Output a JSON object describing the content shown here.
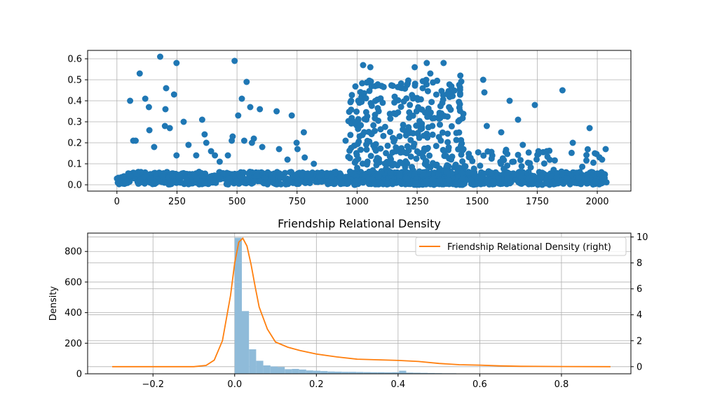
{
  "colors": {
    "scatter": "#1f77b4",
    "hist": "#8fbbd9",
    "kde": "#ff7f0e",
    "grid": "#b0b0b0"
  },
  "chart_data": [
    {
      "type": "scatter",
      "title": "",
      "xlabel": "",
      "ylabel": "",
      "xlim": [
        -122,
        2140
      ],
      "ylim": [
        -0.03,
        0.64
      ],
      "xticks": [
        0,
        250,
        500,
        750,
        1000,
        1250,
        1500,
        1750,
        2000
      ],
      "xtick_labels": [
        "0",
        "250",
        "500",
        "750",
        "1000",
        "1250",
        "1500",
        "1750",
        "2000"
      ],
      "yticks": [
        0.0,
        0.1,
        0.2,
        0.3,
        0.4,
        0.5,
        0.6
      ],
      "ytick_labels": [
        "0.0",
        "0.1",
        "0.2",
        "0.3",
        "0.4",
        "0.5",
        "0.6"
      ],
      "grid": true,
      "outliers": [
        [
          55,
          0.4
        ],
        [
          68,
          0.21
        ],
        [
          78,
          0.21
        ],
        [
          95,
          0.53
        ],
        [
          118,
          0.41
        ],
        [
          133,
          0.37
        ],
        [
          135,
          0.26
        ],
        [
          155,
          0.18
        ],
        [
          180,
          0.61
        ],
        [
          200,
          0.28
        ],
        [
          202,
          0.36
        ],
        [
          205,
          0.46
        ],
        [
          220,
          0.27
        ],
        [
          238,
          0.43
        ],
        [
          248,
          0.58
        ],
        [
          248,
          0.14
        ],
        [
          278,
          0.3
        ],
        [
          298,
          0.19
        ],
        [
          330,
          0.14
        ],
        [
          355,
          0.31
        ],
        [
          365,
          0.24
        ],
        [
          372,
          0.2
        ],
        [
          392,
          0.16
        ],
        [
          408,
          0.14
        ],
        [
          428,
          0.11
        ],
        [
          462,
          0.14
        ],
        [
          478,
          0.21
        ],
        [
          482,
          0.23
        ],
        [
          490,
          0.59
        ],
        [
          505,
          0.33
        ],
        [
          520,
          0.41
        ],
        [
          530,
          0.21
        ],
        [
          540,
          0.49
        ],
        [
          555,
          0.37
        ],
        [
          562,
          0.2
        ],
        [
          570,
          0.22
        ],
        [
          595,
          0.36
        ],
        [
          605,
          0.18
        ],
        [
          665,
          0.35
        ],
        [
          675,
          0.17
        ],
        [
          710,
          0.12
        ],
        [
          728,
          0.33
        ],
        [
          748,
          0.2
        ],
        [
          752,
          0.17
        ],
        [
          778,
          0.25
        ],
        [
          782,
          0.13
        ],
        [
          820,
          0.1
        ],
        [
          952,
          0.21
        ],
        [
          975,
          0.4
        ],
        [
          1025,
          0.57
        ],
        [
          1055,
          0.56
        ],
        [
          1240,
          0.56
        ],
        [
          1290,
          0.58
        ],
        [
          1305,
          0.53
        ],
        [
          1360,
          0.58
        ],
        [
          1430,
          0.52
        ],
        [
          1525,
          0.5
        ],
        [
          1530,
          0.44
        ],
        [
          1540,
          0.28
        ],
        [
          1600,
          0.25
        ],
        [
          1635,
          0.4
        ],
        [
          1670,
          0.31
        ],
        [
          1690,
          0.19
        ],
        [
          1740,
          0.38
        ],
        [
          1755,
          0.16
        ],
        [
          1790,
          0.16
        ],
        [
          1855,
          0.45
        ],
        [
          1898,
          0.2
        ],
        [
          1968,
          0.27
        ],
        [
          1990,
          0.15
        ],
        [
          2020,
          0.12
        ],
        [
          2035,
          0.17
        ]
      ],
      "dense_bands": [
        {
          "from": 0,
          "to": 2040,
          "base_max": 0.06,
          "count": 1050
        },
        {
          "from": 960,
          "to": 1450,
          "base_max": 0.5,
          "count": 420
        },
        {
          "from": 1450,
          "to": 2040,
          "base_max": 0.17,
          "count": 110
        }
      ]
    },
    {
      "type": "hist+kde",
      "title": "Friendship Relational Density",
      "xlabel": "",
      "ylabel": "Density",
      "xlim": [
        -0.36,
        0.97
      ],
      "ylim_left": [
        0,
        920
      ],
      "ylim_right": [
        -0.55,
        10.3
      ],
      "xticks": [
        -0.2,
        0.0,
        0.2,
        0.4,
        0.6,
        0.8
      ],
      "xtick_labels": [
        "−0.2",
        "0.0",
        "0.2",
        "0.4",
        "0.6",
        "0.8"
      ],
      "yticks_left": [
        0,
        200,
        400,
        600,
        800
      ],
      "ytick_labels_left": [
        "0",
        "200",
        "400",
        "600",
        "800"
      ],
      "yticks_right": [
        0,
        2,
        4,
        6,
        8,
        10
      ],
      "ytick_labels_right": [
        "0",
        "2",
        "4",
        "6",
        "8",
        "10"
      ],
      "grid": true,
      "legend": {
        "position": "top-right",
        "entries": [
          "Friendship Relational Density (right)"
        ]
      },
      "histogram": {
        "bin_start": 0.0,
        "bin_width": 0.0175,
        "counts": [
          890,
          410,
          160,
          85,
          55,
          48,
          45,
          30,
          32,
          28,
          22,
          20,
          18,
          15,
          14,
          13,
          13,
          12,
          11,
          10,
          10,
          9,
          10,
          20,
          8,
          7,
          6,
          5,
          4,
          3,
          3,
          2
        ]
      },
      "kde": {
        "x": [
          -0.3,
          -0.1,
          -0.07,
          -0.05,
          -0.03,
          -0.01,
          0.0,
          0.01,
          0.02,
          0.03,
          0.04,
          0.05,
          0.06,
          0.08,
          0.1,
          0.13,
          0.16,
          0.2,
          0.25,
          0.3,
          0.35,
          0.4,
          0.45,
          0.5,
          0.55,
          0.6,
          0.65,
          0.7,
          0.8,
          0.92
        ],
        "y": [
          0.0,
          0.0,
          0.1,
          0.5,
          2.0,
          5.5,
          8.0,
          9.6,
          9.9,
          9.3,
          7.9,
          6.2,
          4.6,
          2.9,
          1.9,
          1.5,
          1.25,
          0.97,
          0.75,
          0.58,
          0.53,
          0.48,
          0.4,
          0.25,
          0.15,
          0.12,
          0.06,
          0.03,
          0.01,
          0.0
        ]
      }
    }
  ]
}
